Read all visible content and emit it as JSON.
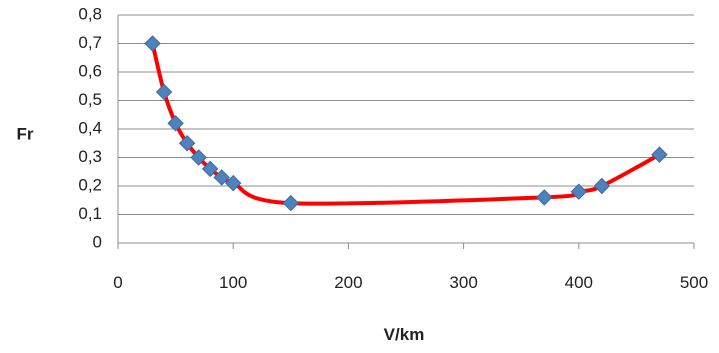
{
  "chart_data": {
    "type": "scatter",
    "xlabel": "V/km",
    "ylabel": "Fr",
    "xlim": [
      0,
      500
    ],
    "ylim": [
      0,
      0.8
    ],
    "x_ticks": [
      0,
      100,
      200,
      300,
      400,
      500
    ],
    "y_ticks": [
      0,
      0.1,
      0.2,
      0.3,
      0.4,
      0.5,
      0.6,
      0.7,
      0.8
    ],
    "x_tick_labels": [
      "0",
      "100",
      "200",
      "300",
      "400",
      "500"
    ],
    "y_tick_labels": [
      "0",
      "0,1",
      "0,2",
      "0,3",
      "0,4",
      "0,5",
      "0,6",
      "0,7",
      "0,8"
    ],
    "grid": "horizontal",
    "legend": "none",
    "series": [
      {
        "marker": "diamond",
        "marker_color": "#4f81bd",
        "line_color": "#ff0000",
        "smooth": true,
        "x": [
          30,
          40,
          50,
          60,
          70,
          80,
          90,
          100,
          150,
          370,
          400,
          420,
          470
        ],
        "y": [
          0.7,
          0.53,
          0.42,
          0.35,
          0.3,
          0.26,
          0.23,
          0.21,
          0.14,
          0.16,
          0.18,
          0.2,
          0.31
        ]
      }
    ]
  }
}
